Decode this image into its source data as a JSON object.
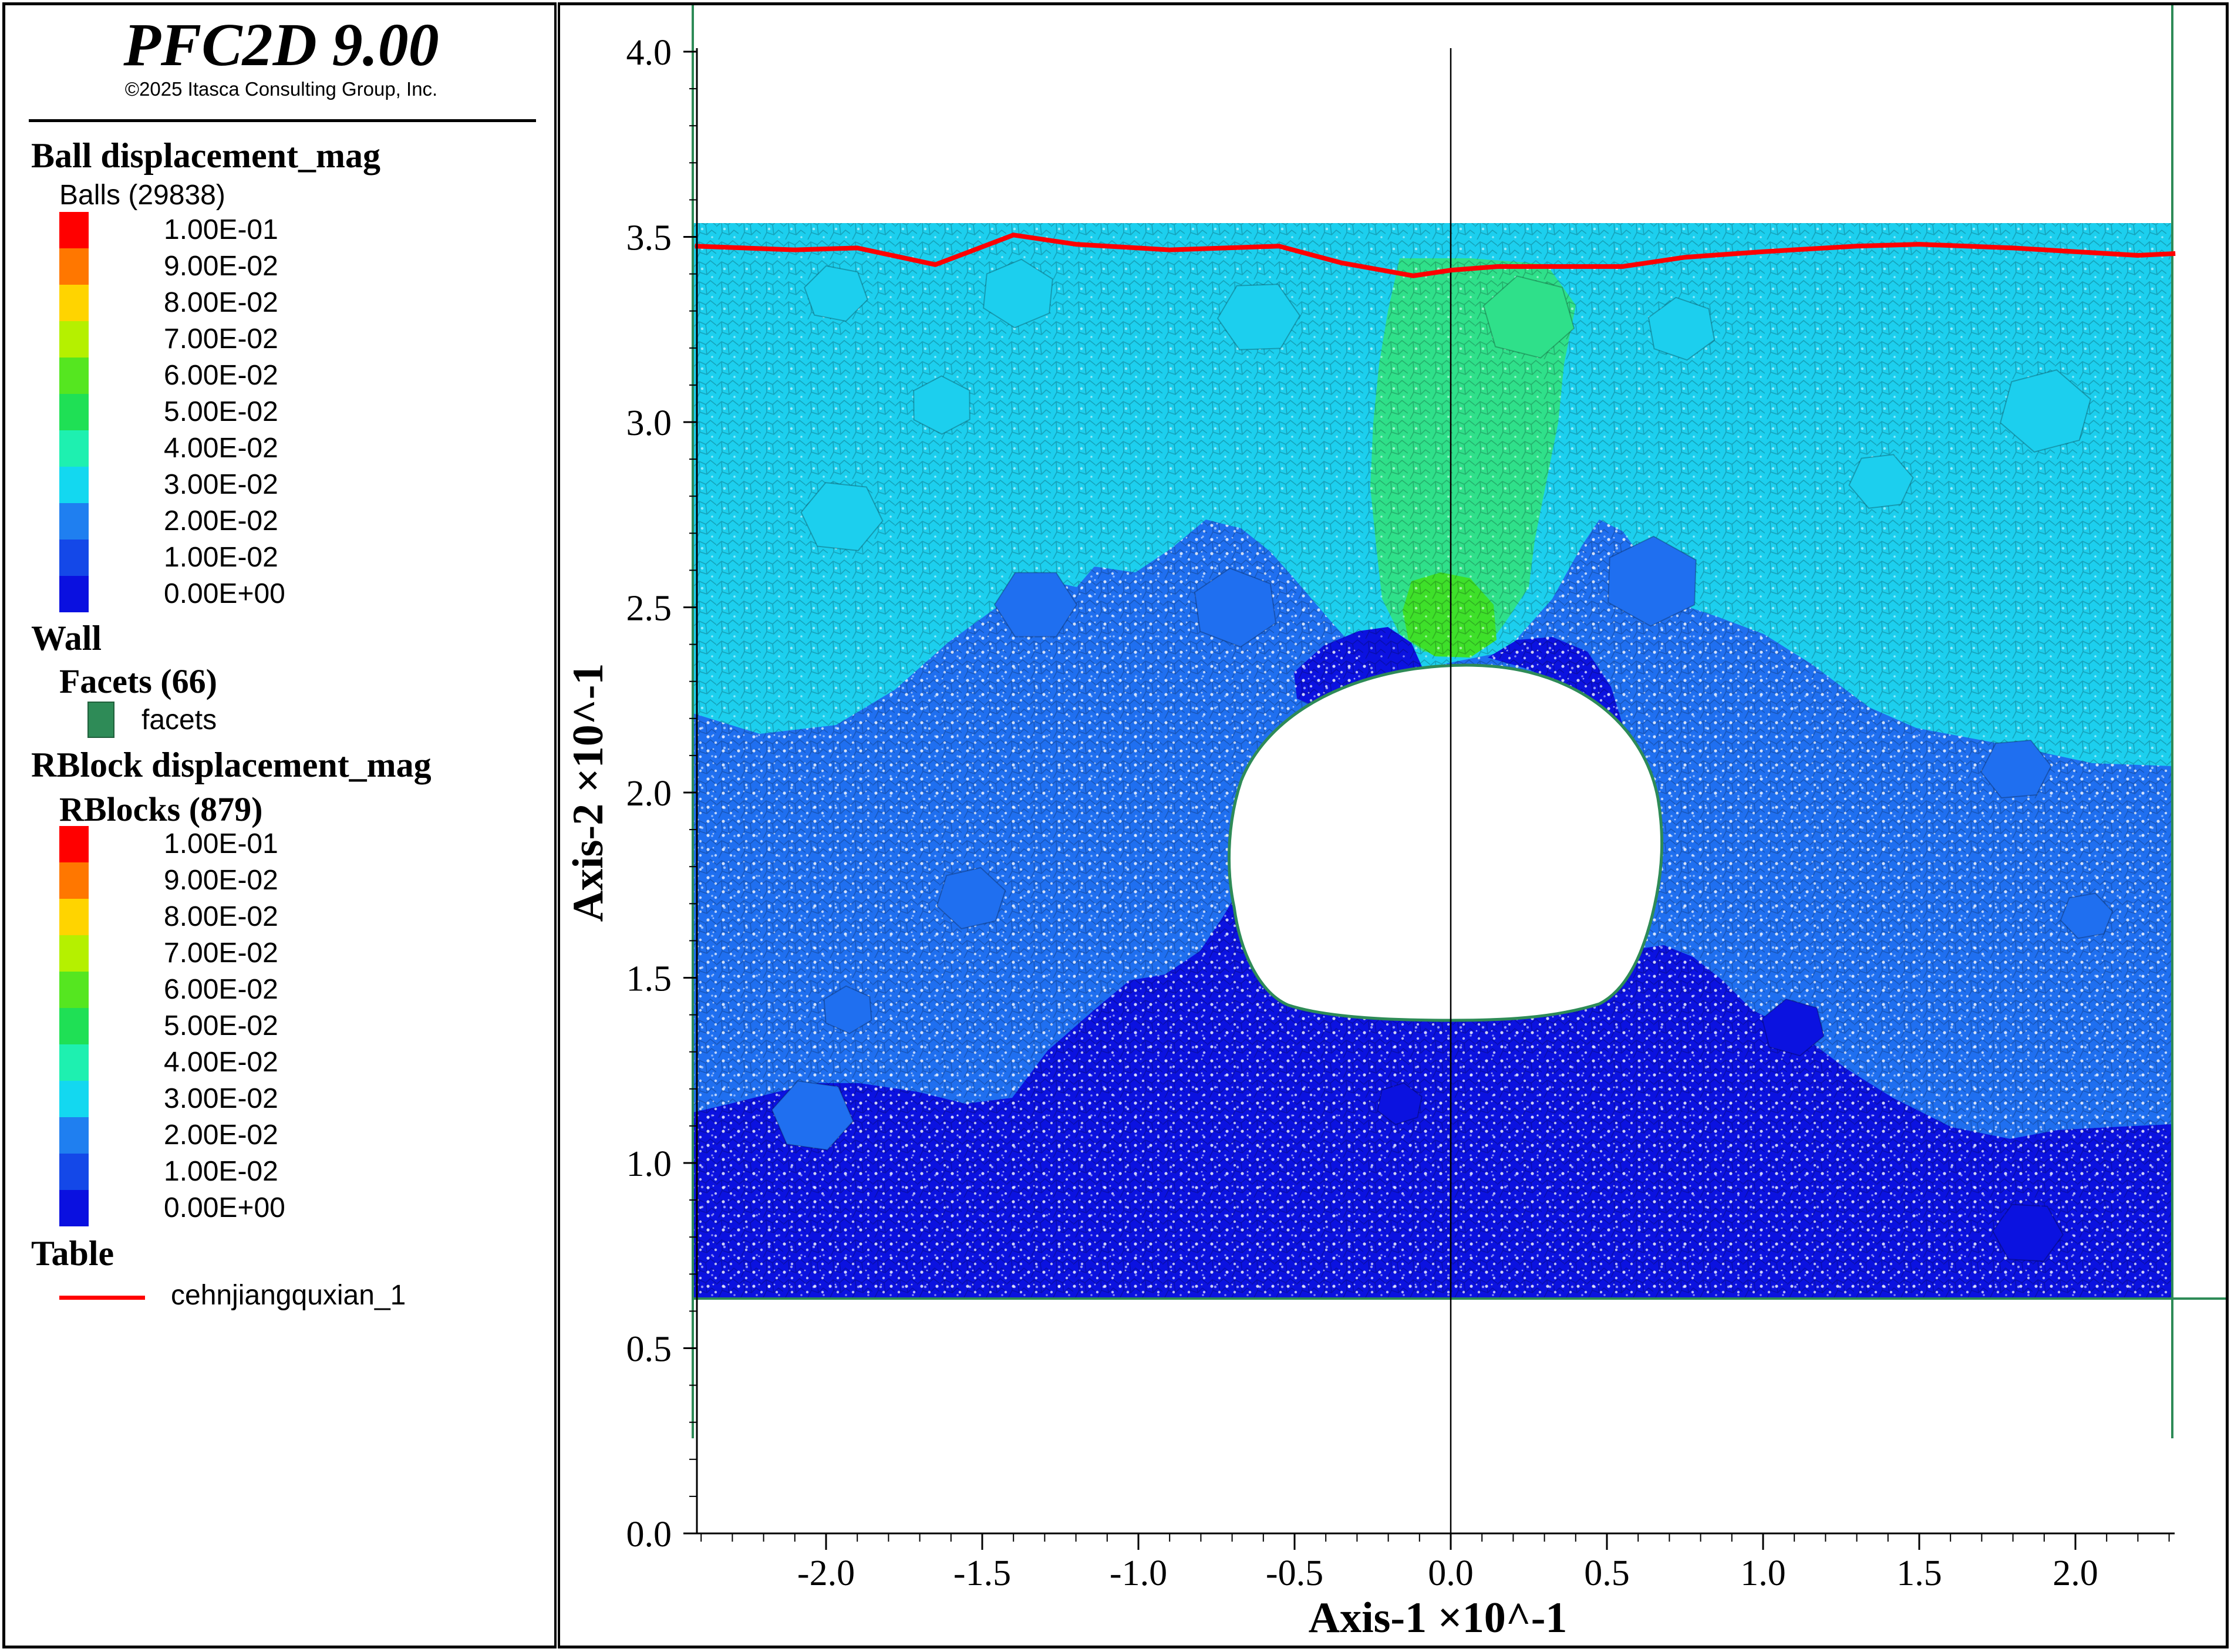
{
  "header": {
    "title": "PFC2D 9.00",
    "copyright": "©2025 Itasca Consulting Group, Inc."
  },
  "legend": {
    "ball_heading": "Ball displacement_mag",
    "ball_count_label": "Balls (29838)",
    "ball_scale": [
      "1.00E-01",
      "9.00E-02",
      "8.00E-02",
      "7.00E-02",
      "6.00E-02",
      "5.00E-02",
      "4.00E-02",
      "3.00E-02",
      "2.00E-02",
      "1.00E-02",
      "0.00E+00"
    ],
    "wall_heading": "Wall",
    "facets_heading": "Facets (66)",
    "facets_label": "facets",
    "rblock_heading": "RBlock displacement_mag",
    "rblock_count_label": "RBlocks (879)",
    "rblock_scale": [
      "1.00E-01",
      "9.00E-02",
      "8.00E-02",
      "7.00E-02",
      "6.00E-02",
      "5.00E-02",
      "4.00E-02",
      "3.00E-02",
      "2.00E-02",
      "1.00E-02",
      "0.00E+00"
    ],
    "table_heading": "Table",
    "table_series": "cehnjiangquxian_1",
    "scale_colors": [
      "#ff0000",
      "#ff7700",
      "#ffd400",
      "#b5f000",
      "#55e620",
      "#1fe055",
      "#1ef0b0",
      "#13d8f0",
      "#1f7ff0",
      "#1448e8",
      "#0a10e0"
    ]
  },
  "colors": {
    "surface_line": "#ff0000",
    "wall": "#2e8b57",
    "deep": "#0b12e0",
    "mid": "#1f6ff0",
    "upper": "#1ccfee",
    "chimney": "#2fe08a",
    "chimney_tip": "#3ee02a"
  },
  "axes": {
    "x_title": "Axis-1 ×10^-1",
    "y_title": "Axis-2 ×10^-1",
    "x_ticks": [
      "-2.0",
      "-1.5",
      "-1.0",
      "-0.5",
      "0.0",
      "0.5",
      "1.0",
      "1.5",
      "2.0"
    ],
    "y_ticks": [
      "0.0",
      "0.5",
      "1.0",
      "1.5",
      "2.0",
      "2.5",
      "3.0",
      "3.5",
      "4.0"
    ],
    "x_range": [
      -2.44,
      2.32
    ],
    "y_range": [
      0.0,
      4.0
    ]
  },
  "chart_data": {
    "type": "line",
    "series": [
      {
        "name": "cehnjiangquxian_1",
        "x": [
          -2.42,
          -2.1,
          -1.9,
          -1.65,
          -1.4,
          -1.2,
          -0.9,
          -0.55,
          -0.35,
          -0.12,
          0.0,
          0.15,
          0.55,
          0.75,
          1.0,
          1.3,
          1.5,
          1.8,
          2.0,
          2.2,
          2.32
        ],
        "y": [
          3.475,
          3.465,
          3.47,
          3.425,
          3.505,
          3.48,
          3.465,
          3.475,
          3.43,
          3.395,
          3.41,
          3.42,
          3.42,
          3.445,
          3.46,
          3.475,
          3.48,
          3.47,
          3.46,
          3.45,
          3.455
        ]
      }
    ],
    "xlabel": "Axis-1 ×10^-1",
    "ylabel": "Axis-2 ×10^-1",
    "xlim": [
      -2.44,
      2.32
    ],
    "ylim": [
      0.0,
      4.0
    ]
  }
}
